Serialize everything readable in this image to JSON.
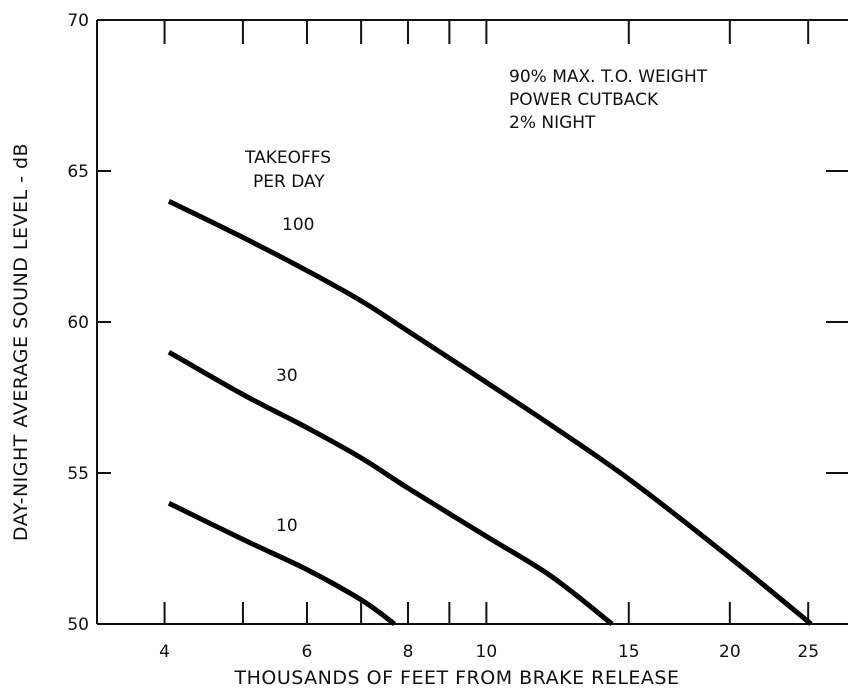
{
  "chart_data": {
    "type": "line",
    "title": "",
    "xlabel": "THOUSANDS OF FEET FROM BRAKE RELEASE",
    "ylabel": "DAY-NIGHT AVERAGE SOUND LEVEL - dB",
    "x_scale": "log",
    "xlim": [
      3.3,
      28
    ],
    "ylim": [
      50,
      70
    ],
    "x_ticks": [
      4,
      6,
      8,
      10,
      15,
      20,
      25
    ],
    "x_tick_labels": [
      "4",
      "6",
      "8",
      "10",
      "15",
      "20",
      "25"
    ],
    "x_top_ticks": [
      4,
      5,
      6,
      7,
      8,
      9,
      10,
      15,
      20,
      25
    ],
    "x_bottom_minor_ticks": [
      5,
      7,
      9
    ],
    "y_ticks": [
      50,
      55,
      60,
      65,
      70
    ],
    "y_tick_labels": [
      "50",
      "55",
      "60",
      "65",
      "70"
    ],
    "grid": false,
    "legend_title": [
      "TAKEOFFS",
      "PER DAY"
    ],
    "annotation_lines": [
      "90% MAX. T.O. WEIGHT",
      "POWER CUTBACK",
      "2% NIGHT"
    ],
    "series": [
      {
        "name": "100",
        "points": [
          [
            4.05,
            64.0
          ],
          [
            5,
            62.8
          ],
          [
            6,
            61.7
          ],
          [
            7,
            60.7
          ],
          [
            8,
            59.7
          ],
          [
            10,
            58.0
          ],
          [
            12,
            56.6
          ],
          [
            15,
            54.8
          ],
          [
            20,
            52.2
          ],
          [
            25.2,
            50.0
          ]
        ]
      },
      {
        "name": "30",
        "points": [
          [
            4.05,
            59.0
          ],
          [
            5,
            57.6
          ],
          [
            6,
            56.5
          ],
          [
            7,
            55.5
          ],
          [
            8,
            54.5
          ],
          [
            10,
            52.9
          ],
          [
            12,
            51.6
          ],
          [
            14.3,
            50.0
          ]
        ]
      },
      {
        "name": "10",
        "points": [
          [
            4.05,
            54.0
          ],
          [
            5,
            52.8
          ],
          [
            6,
            51.8
          ],
          [
            7,
            50.8
          ],
          [
            7.7,
            50.0
          ]
        ]
      }
    ],
    "colors": {
      "line": "#000000",
      "axis": "#111111"
    }
  }
}
